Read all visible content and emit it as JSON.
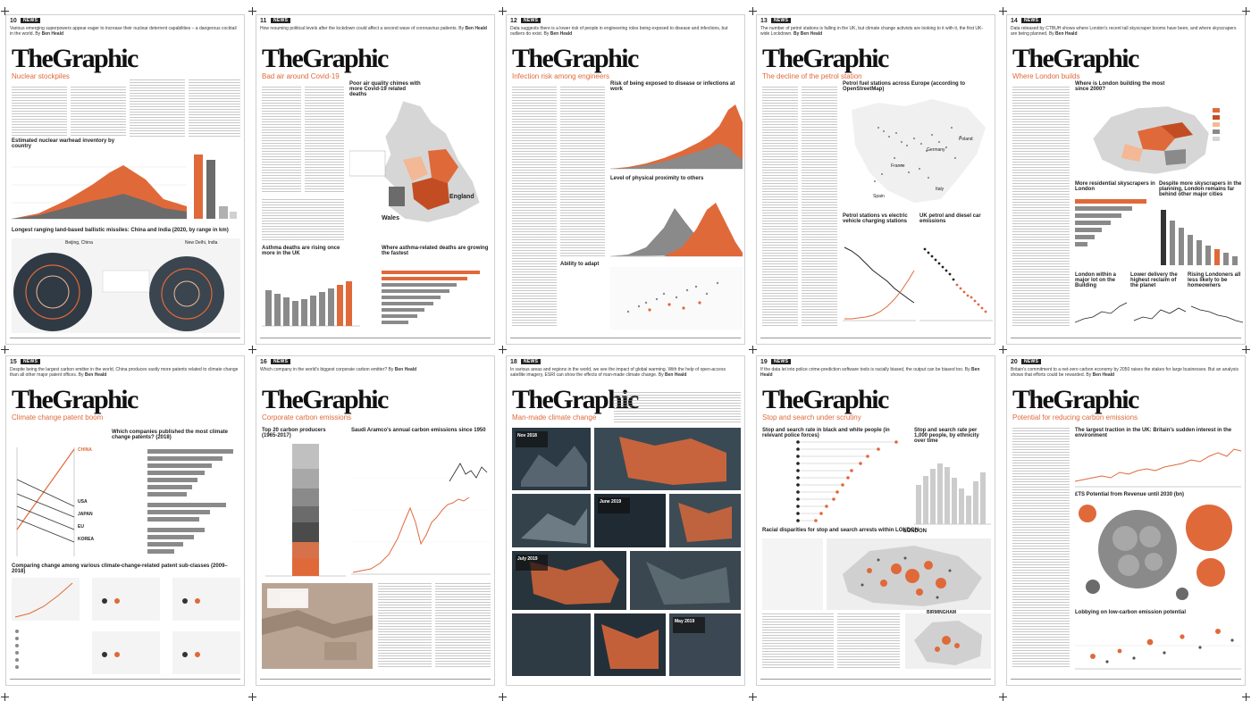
{
  "brand": {
    "accent": "#e0693a",
    "accent_light": "#f3b896",
    "ink": "#222222",
    "grey": "#8a8a8a"
  },
  "pages": [
    {
      "page_number": "10",
      "section": "NEWS",
      "standfirst": "Various emerging superpowers appear eager to increase their nuclear deterrent capabilities – a dangerous cocktail in the world. By",
      "byline": "Ben Heald",
      "masthead": "TheGraphic",
      "subtitle": "Nuclear stockpiles",
      "chart_titles": [
        "Estimated nuclear warhead inventory by country",
        "Longest ranging land-based ballistic missiles: China and India (2020, by range in km)"
      ],
      "place_labels": [
        "Beijing, China",
        "New Delhi, India"
      ]
    },
    {
      "page_number": "11",
      "section": "NEWS",
      "standfirst": "How resuming political levels after the lockdown could affect a second wave of coronavirus patients. By",
      "byline": "Ben Heald",
      "masthead": "TheGraphic",
      "subtitle": "Bad air around Covid-19",
      "chart_titles": [
        "Poor air quality chimes with more Covid-19 related deaths",
        "Asthma deaths are rising once more in the UK",
        "Where asthma-related deaths are growing the fastest"
      ],
      "place_labels": [
        "England",
        "Wales"
      ]
    },
    {
      "page_number": "12",
      "section": "NEWS",
      "standfirst": "Data suggests there is a lower risk of people in engineering roles being exposed to disease and infections, but outliers do exist. By",
      "byline": "Ben Heald",
      "masthead": "TheGraphic",
      "subtitle": "Infection risk among engineers",
      "chart_titles": [
        "Risk of being exposed to disease or infections at work",
        "Level of physical proximity to others",
        "Ability to adapt"
      ],
      "place_labels": []
    },
    {
      "page_number": "13",
      "section": "NEWS",
      "standfirst": "The number of petrol stations is falling in the UK, but climate change activists are looking to it with it, the first UK-wide Lockdown.",
      "byline": "By Ben Heald",
      "masthead": "TheGraphic",
      "subtitle": "The decline of the petrol station",
      "chart_titles": [
        "Petrol fuel stations across Europe (according to OpenStreetMap)",
        "Petrol stations vs electric vehicle charging stations",
        "UK petrol and diesel car emissions"
      ],
      "place_labels": [
        "France",
        "Germany",
        "Poland",
        "Italy",
        "Spain"
      ]
    },
    {
      "page_number": "14",
      "section": "NEWS",
      "standfirst": "Data released by CTBUH shows where London's recent tall skyscraper booms have been, and where skyscrapers are being planned. By",
      "byline": "Ben Heald",
      "masthead": "TheGraphic",
      "subtitle": "Where London builds",
      "chart_titles": [
        "Where is London building the most since 2000?",
        "More residential skyscrapers in London",
        "Despite more skyscrapers in the planning, London remains far behind other major cities",
        "London within a major lot on the Building",
        "Lower delivery the highest reclaim of the planet",
        "Rising Londoners all less likely to be homeowners"
      ],
      "place_labels": []
    },
    {
      "page_number": "15",
      "section": "NEWS",
      "standfirst": "Despite being the largest carbon emitter in the world, China produces vastly more patents related to climate change than all other major patent offices. By",
      "byline": "Ben Heald",
      "masthead": "TheGraphic",
      "subtitle": "Climate change patent boom",
      "chart_titles": [
        "Which companies published the most climate change patents? (2018)",
        "Comparing change among various climate-change-related patent sub-classes (2009–2018)"
      ],
      "place_labels": [
        "USA",
        "JAPAN",
        "EU",
        "KOREA",
        "CHINA"
      ]
    },
    {
      "page_number": "16",
      "section": "NEWS",
      "standfirst": "Which company in the world's biggest corporate carbon emitter? By",
      "byline": "Ben Heald",
      "masthead": "TheGraphic",
      "subtitle": "Corporate carbon emissions",
      "chart_titles": [
        "Top 20 carbon producers (1965-2017)",
        "Saudi Aramco's annual carbon emissions since 1950"
      ],
      "place_labels": []
    },
    {
      "page_number": "18",
      "section": "NEWS",
      "standfirst": "In various areas and regions in the world, we see the impact of global warming. With the help of open-access satellite imagery, ESRI can show the effects of man-made climate change. By",
      "byline": "Ben Heald",
      "masthead": "TheGraphic",
      "subtitle": "Man-made climate change",
      "chart_titles": [],
      "place_labels": [
        "Nov 2018",
        "June 2019",
        "July 2019",
        "May 2019"
      ]
    },
    {
      "page_number": "19",
      "section": "NEWS",
      "standfirst": "If the data let into police crime-prediction software tools is racially biased, the output can be biased too. By",
      "byline": "Ben Heald",
      "masthead": "TheGraphic",
      "subtitle": "Stop and search under scrutiny",
      "chart_titles": [
        "Stop and search rate in black and white people (in relevant police forces)",
        "Stop and search rate per 1,000 people, by ethnicity over time",
        "Racial disparities for stop and search arrests within LONDON"
      ],
      "place_labels": [
        "LONDON",
        "BIRMINGHAM"
      ]
    },
    {
      "page_number": "20",
      "section": "NEWS",
      "standfirst": "Britain's commitment to a net-zero carbon economy by 2050 raises the stakes for large businesses. But an analysis shows that efforts could be rewarded. By",
      "byline": "Ben Heald",
      "masthead": "TheGraphic",
      "subtitle": "Potential for reducing carbon emissions",
      "chart_titles": [
        "The largest traction in the UK: Britain's sudden interest in the environment",
        "£TS Potential from Revenue until 2030 (bn)",
        "Lobbying on low-carbon emission potential"
      ],
      "place_labels": []
    }
  ]
}
